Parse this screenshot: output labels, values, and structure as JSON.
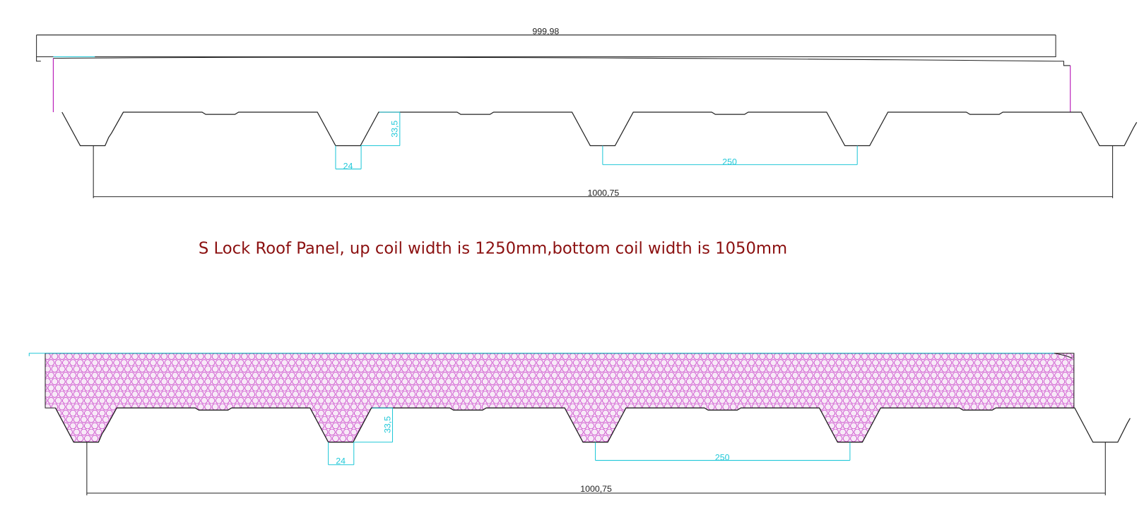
{
  "top_panel": {
    "overall_width": "999,98",
    "rib_height": "33,5",
    "rib_bottom_width": "24",
    "rib_spacing": "250",
    "cover_width": "1000,75"
  },
  "caption": "S Lock Roof Panel, up coil width is 1250mm,bottom coil width is 1050mm",
  "bottom_panel": {
    "rib_height": "33,5",
    "rib_bottom_width": "24",
    "rib_spacing": "250",
    "cover_width": "1000,75"
  }
}
